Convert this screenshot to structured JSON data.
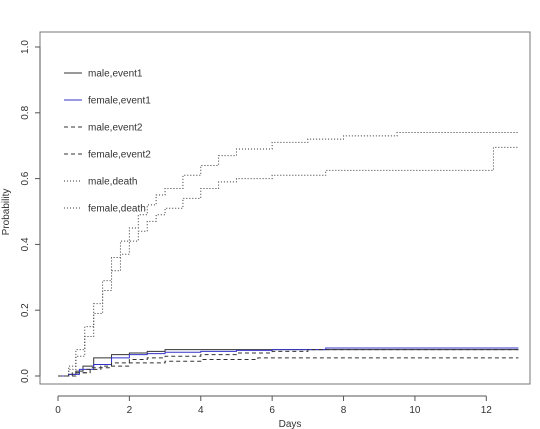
{
  "chart_data": {
    "type": "line",
    "title": "",
    "xlabel": "Days",
    "ylabel": "Probability",
    "xlim": [
      0,
      13
    ],
    "ylim": [
      0,
      1
    ],
    "x_ticks": [
      0,
      2,
      4,
      6,
      8,
      10,
      12
    ],
    "y_ticks": [
      0.0,
      0.2,
      0.4,
      0.6,
      0.8,
      1.0
    ],
    "y_tick_labels": [
      "0.0",
      "0.2",
      "0.4",
      "0.6",
      "0.8",
      "1.0"
    ],
    "grid": false,
    "legend_position": "top-left",
    "step": true,
    "series": [
      {
        "name": "male,event1",
        "color": "#333333",
        "dash": "",
        "x": [
          0,
          0.3,
          0.5,
          0.7,
          1.0,
          1.5,
          2.0,
          2.5,
          3.0,
          4.0,
          5.0,
          6.0,
          7.5,
          12.9
        ],
        "y": [
          0,
          0.005,
          0.015,
          0.03,
          0.055,
          0.065,
          0.07,
          0.075,
          0.08,
          0.08,
          0.08,
          0.08,
          0.08,
          0.08
        ]
      },
      {
        "name": "female,event1",
        "color": "#3333cc",
        "dash": "",
        "x": [
          0,
          0.3,
          0.6,
          1.0,
          1.5,
          2.0,
          2.5,
          3.0,
          4.0,
          5.0,
          6.0,
          7.5,
          12.9
        ],
        "y": [
          0,
          0.005,
          0.02,
          0.035,
          0.055,
          0.065,
          0.068,
          0.072,
          0.075,
          0.078,
          0.08,
          0.085,
          0.085
        ]
      },
      {
        "name": "male,event2",
        "color": "#333333",
        "dash": "4,3",
        "x": [
          0,
          0.4,
          0.8,
          1.2,
          2.0,
          3.0,
          4.0,
          5.0,
          5.6,
          6.0,
          12.9
        ],
        "y": [
          0,
          0.01,
          0.02,
          0.03,
          0.04,
          0.045,
          0.05,
          0.05,
          0.055,
          0.055,
          0.055
        ]
      },
      {
        "name": "female,event2",
        "color": "#333333",
        "dash": "4,3",
        "x": [
          0,
          0.5,
          0.9,
          1.5,
          2.0,
          2.5,
          3.0,
          4.0,
          5.0,
          6.0,
          7.0,
          7.5,
          12.9
        ],
        "y": [
          0,
          0.01,
          0.025,
          0.04,
          0.05,
          0.055,
          0.06,
          0.065,
          0.07,
          0.075,
          0.08,
          0.08,
          0.08
        ]
      },
      {
        "name": "male,death",
        "color": "#333333",
        "dash": "1,2",
        "x": [
          0,
          0.3,
          0.5,
          0.75,
          1.0,
          1.25,
          1.5,
          1.75,
          2.0,
          2.25,
          2.5,
          2.75,
          3.0,
          3.5,
          4.0,
          4.5,
          5.0,
          6.0,
          7.0,
          8.0,
          9.5,
          12.9
        ],
        "y": [
          0,
          0.03,
          0.08,
          0.15,
          0.22,
          0.29,
          0.36,
          0.41,
          0.45,
          0.49,
          0.52,
          0.55,
          0.57,
          0.61,
          0.64,
          0.67,
          0.69,
          0.71,
          0.72,
          0.73,
          0.74,
          0.74
        ]
      },
      {
        "name": "female,death",
        "color": "#333333",
        "dash": "1,2",
        "x": [
          0,
          0.3,
          0.5,
          0.75,
          1.0,
          1.25,
          1.5,
          1.75,
          2.0,
          2.25,
          2.5,
          2.75,
          3.0,
          3.5,
          4.0,
          4.5,
          5.0,
          6.0,
          7.5,
          12.2,
          12.9
        ],
        "y": [
          0,
          0.02,
          0.06,
          0.12,
          0.19,
          0.26,
          0.32,
          0.37,
          0.41,
          0.44,
          0.47,
          0.49,
          0.51,
          0.54,
          0.57,
          0.59,
          0.6,
          0.61,
          0.625,
          0.695,
          0.695
        ]
      }
    ]
  }
}
